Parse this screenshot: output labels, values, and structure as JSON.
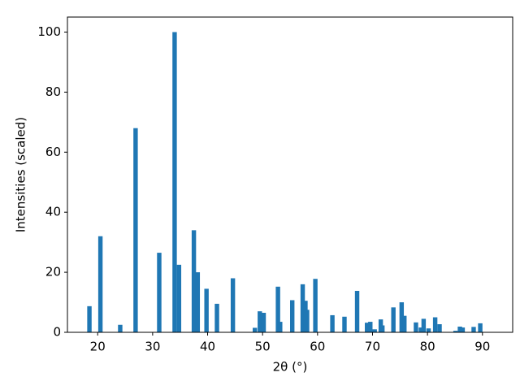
{
  "chart_data": {
    "type": "bar",
    "x_label": "2θ (°)",
    "y_label": "Intensities (scaled)",
    "x": [
      18.5,
      20.5,
      24.1,
      26.9,
      31.2,
      34.0,
      34.8,
      37.5,
      38.2,
      39.8,
      41.7,
      44.6,
      48.6,
      49.5,
      50.2,
      52.8,
      53.2,
      55.4,
      57.3,
      57.8,
      58.1,
      59.6,
      62.7,
      64.9,
      67.2,
      69.0,
      69.6,
      70.4,
      71.5,
      71.8,
      73.8,
      75.3,
      75.8,
      77.9,
      78.8,
      79.3,
      80.2,
      81.4,
      82.2,
      85.1,
      85.9,
      86.4,
      88.4,
      89.6
    ],
    "values": [
      8.7,
      32,
      2.5,
      68,
      26.5,
      100,
      22.5,
      34,
      20,
      14.5,
      9.5,
      18,
      1.5,
      7,
      6.5,
      15.2,
      3.5,
      10.7,
      16,
      10.5,
      7.5,
      17.8,
      5.7,
      5.2,
      13.8,
      3.2,
      3.5,
      1,
      4.3,
      2.3,
      8.3,
      10,
      5.5,
      3.3,
      1.6,
      4.5,
      1.3,
      5,
      2.7,
      0.5,
      1.9,
      1.6,
      1.8,
      3
    ],
    "color": "#1f77b4",
    "bar_width": 0.8,
    "xlim": [
      14.5,
      95.5
    ],
    "xticks": [
      20,
      30,
      40,
      50,
      60,
      70,
      80,
      90
    ],
    "ylim": [
      0,
      105
    ],
    "yticks": [
      0,
      20,
      40,
      60,
      80,
      100
    ],
    "grid": false
  }
}
